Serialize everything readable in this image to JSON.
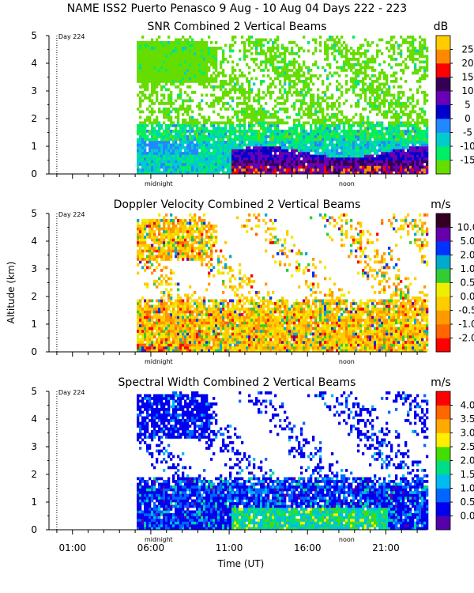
{
  "figure": {
    "title": "NAME ISS2 Puerto Penasco   9 Aug - 10 Aug 04 Days 222 - 223",
    "xlabel": "Time (UT)",
    "ylabel": "Altitude (km)",
    "x_tick_labels": [
      "01:00",
      "06:00",
      "11:00",
      "16:00",
      "21:00"
    ],
    "x_tick_hours": [
      1,
      6,
      11,
      16,
      21
    ],
    "x_range_hours": [
      -0.5,
      23.6
    ],
    "day_marker_hour": 0,
    "day_marker_label": "Day 224",
    "midnight_label": "midnight",
    "midnight_hour": 6.5,
    "noon_label": "noon",
    "noon_hour": 18.5,
    "data_start_hour": 4.95
  },
  "chart_data": [
    {
      "type": "heatmap",
      "title": "SNR Combined 2 Vertical Beams",
      "unit": "dB",
      "ylim": [
        0,
        5
      ],
      "y_tick_labels": [
        "0",
        "1",
        "2",
        "3",
        "4",
        "5"
      ],
      "colorbar_labels": [
        "-15",
        "-10",
        "-5",
        "0",
        "5",
        "10",
        "15",
        "20",
        "25"
      ],
      "colors": [
        "#66dd00",
        "#00ee66",
        "#00cccc",
        "#2288ff",
        "#0000cc",
        "#6a00b5",
        "#330055",
        "#ff0000",
        "#ff8800",
        "#ffcc00"
      ],
      "mode": "snr"
    },
    {
      "type": "heatmap",
      "title": "Doppler Velocity Combined 2 Vertical Beams",
      "unit": "m/s",
      "ylim": [
        0,
        5
      ],
      "y_tick_labels": [
        "0",
        "1",
        "2",
        "3",
        "4",
        "5"
      ],
      "colorbar_labels": [
        "-2.0",
        "-1.0",
        "-0.5",
        "0.0",
        "0.5",
        "1.0",
        "2.0",
        "5.0",
        "10.0"
      ],
      "colors": [
        "#ff0000",
        "#ff6600",
        "#ff9900",
        "#ffcc00",
        "#eeee00",
        "#33cc33",
        "#00aacc",
        "#0033ff",
        "#6600aa",
        "#330022"
      ],
      "mode": "vel"
    },
    {
      "type": "heatmap",
      "title": "Spectral Width Combined 2 Vertical Beams",
      "unit": "m/s",
      "ylim": [
        0,
        4.999
      ],
      "y_tick_labels": [
        "0",
        "1",
        "2",
        "3",
        "4",
        "5"
      ],
      "colorbar_labels": [
        "0.0",
        "0.5",
        "1.0",
        "1.5",
        "2.0",
        "2.5",
        "3.0",
        "3.5",
        "4.0"
      ],
      "colors": [
        "#5500aa",
        "#0000ee",
        "#0066ff",
        "#00bbee",
        "#00dd88",
        "#44dd00",
        "#ffee00",
        "#ffaa00",
        "#ff6600",
        "#ff0000"
      ],
      "mode": "sw"
    }
  ]
}
